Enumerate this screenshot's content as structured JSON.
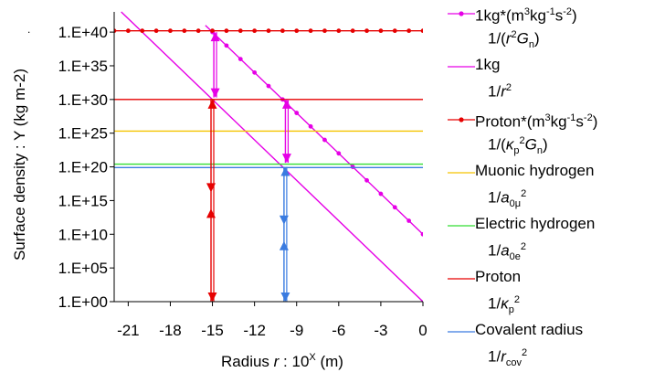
{
  "chart_data": {
    "type": "line",
    "xlabel_prefix": "Radius ",
    "xlabel_var": "r",
    "xlabel_mid": " : 10",
    "xlabel_exp": "X",
    "xlabel_suffix": " (m)",
    "ylabel": "Surface density : Y (kg m-2)",
    "xlim": [
      -22,
      0
    ],
    "ylim": [
      0,
      43
    ],
    "x_ticks": [
      -21,
      -18,
      -15,
      -12,
      -9,
      -6,
      -3,
      0
    ],
    "y_ticks": [
      {
        "value": 0,
        "label": "1.E+00"
      },
      {
        "value": 5,
        "label": "1.E+05"
      },
      {
        "value": 10,
        "label": "1.E+10"
      },
      {
        "value": 15,
        "label": "1.E+15"
      },
      {
        "value": 20,
        "label": "1.E+20"
      },
      {
        "value": 25,
        "label": "1.E+25"
      },
      {
        "value": 30,
        "label": "1.E+30"
      },
      {
        "value": 35,
        "label": "1.E+35"
      },
      {
        "value": 40,
        "label": "1.E+40"
      }
    ],
    "y_note": ".",
    "series": [
      {
        "key": "g_planck",
        "color": "#e600e6",
        "markers": true,
        "x": [
          -15.5,
          0
        ],
        "y": [
          41.0,
          10.0
        ]
      },
      {
        "key": "one_kg",
        "color": "#e600e6",
        "markers": false,
        "x": [
          -21.5,
          0
        ],
        "y": [
          43.0,
          0.0
        ]
      },
      {
        "key": "g_proton",
        "color": "#e60000",
        "markers": true,
        "x": [
          -22,
          0
        ],
        "y": [
          40.2,
          40.2
        ]
      },
      {
        "key": "muonic",
        "color": "#f5c400",
        "markers": false,
        "x": [
          -22,
          0
        ],
        "y": [
          25.3,
          25.3
        ]
      },
      {
        "key": "electric",
        "color": "#33dd33",
        "markers": false,
        "x": [
          -22,
          0
        ],
        "y": [
          20.4,
          20.4
        ]
      },
      {
        "key": "proton",
        "color": "#e60000",
        "markers": false,
        "x": [
          -22,
          0
        ],
        "y": [
          30.0,
          30.0
        ]
      },
      {
        "key": "covalent",
        "color": "#3a7be0",
        "markers": false,
        "x": [
          -22,
          0
        ],
        "y": [
          19.9,
          19.9
        ]
      }
    ],
    "arrows": [
      {
        "color": "#e600e6",
        "x": -14.9,
        "y1": 30.3,
        "y2": 40.0
      },
      {
        "color": "#e600e6",
        "x": -9.8,
        "y1": 20.6,
        "y2": 30.0
      },
      {
        "color": "#e60000",
        "x": -15.1,
        "y1": 0.0,
        "y2": 30.0
      },
      {
        "color": "#e60000",
        "x": -15.1,
        "y1": 15.0,
        "y2": 15.0
      },
      {
        "color": "#3a7be0",
        "x": -9.9,
        "y1": 0.0,
        "y2": 20.0
      },
      {
        "color": "#3a7be0",
        "x": -9.9,
        "y1": 10.2,
        "y2": 10.2
      }
    ],
    "legend_position": "right"
  },
  "legend": {
    "g_planck": {
      "name_a": "1kg*(m",
      "name_sup1": "3",
      "name_b": "kg",
      "name_sup2": "-1",
      "name_c": "s",
      "name_sup3": "-2",
      "name_d": ")",
      "sub_a": "1/(",
      "sub_var": "r",
      "sub_sup": "2",
      "sub_var2": "G",
      "sub_sub": "n",
      "sub_b": ")"
    },
    "one_kg": {
      "name": "1kg",
      "sub_a": "1/",
      "sub_var": "r",
      "sub_sup": "2"
    },
    "g_proton": {
      "name_a": "Proton*(m",
      "name_sup1": "3",
      "name_b": "kg",
      "name_sup2": "-1",
      "name_c": "s",
      "name_sup3": "-2",
      "name_d": ")",
      "sub_a": "1/(",
      "sub_var": "κ",
      "sub_sub": "p",
      "sub_sup": "2",
      "sub_var2": "G",
      "sub_sub2": "n",
      "sub_b": ")"
    },
    "muonic": {
      "name": "Muonic hydrogen",
      "sub_a": "1/",
      "sub_var": "a",
      "sub_sub": "0μ",
      "sub_sup": "2"
    },
    "electric": {
      "name": "Electric hydrogen",
      "sub_a": "1/",
      "sub_var": "a",
      "sub_sub": "0e",
      "sub_sup": "2"
    },
    "proton": {
      "name": "Proton",
      "sub_a": "1/",
      "sub_var": "κ",
      "sub_sub": "p",
      "sub_sup": "2"
    },
    "covalent": {
      "name": "Covalent radius",
      "sub_a": "1/",
      "sub_var": "r",
      "sub_sub": "cov",
      "sub_sup": "2"
    }
  }
}
